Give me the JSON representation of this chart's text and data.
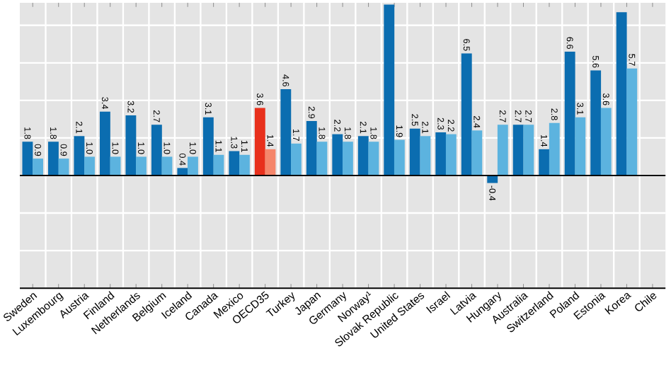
{
  "chart_data": {
    "type": "bar",
    "categories": [
      "Sweden",
      "Luxembourg",
      "Austria",
      "Finland",
      "Netherlands",
      "Belgium",
      "Iceland",
      "Canada",
      "Mexico",
      "OECD35",
      "Turkey",
      "Japan",
      "Germany",
      "Norway¹",
      "Slovak Republic",
      "United States",
      "Israel",
      "Latvia",
      "Hungary",
      "Australia",
      "Switzerland",
      "Poland",
      "Estonia",
      "Korea",
      "Chile"
    ],
    "series": [
      {
        "colors": [
          "#0b6db0",
          "#0b6db0",
          "#0b6db0",
          "#0b6db0",
          "#0b6db0",
          "#0b6db0",
          "#0b6db0",
          "#0b6db0",
          "#0b6db0",
          "#e8301c",
          "#0b6db0",
          "#0b6db0",
          "#0b6db0",
          "#0b6db0",
          "#0b6db0",
          "#0b6db0",
          "#0b6db0",
          "#0b6db0",
          "#0b6db0",
          "#0b6db0",
          "#0b6db0",
          "#0b6db0",
          "#0b6db0",
          "#0b6db0",
          "#0b6db0"
        ],
        "values": [
          1.8,
          1.8,
          2.1,
          3.4,
          3.2,
          2.7,
          0.4,
          3.1,
          1.3,
          3.6,
          4.6,
          2.9,
          2.2,
          2.1,
          9.1,
          2.5,
          2.3,
          6.5,
          -0.4,
          2.7,
          1.4,
          6.6,
          5.6,
          8.7,
          null
        ],
        "value_labels": [
          "1.8",
          "1.8",
          "2.1",
          "3.4",
          "3.2",
          "2.7",
          "0.4",
          "3.1",
          "1.3",
          "3.6",
          "4.6",
          "2.9",
          "2.2",
          "2.1",
          null,
          "2.5",
          "2.3",
          "6.5",
          "-0.4",
          "2.7",
          "1.4",
          "6.6",
          "5.6",
          null,
          null
        ]
      },
      {
        "colors": [
          "#5cb3df",
          "#5cb3df",
          "#5cb3df",
          "#5cb3df",
          "#5cb3df",
          "#5cb3df",
          "#5cb3df",
          "#5cb3df",
          "#5cb3df",
          "#f5866b",
          "#5cb3df",
          "#5cb3df",
          "#5cb3df",
          "#5cb3df",
          "#5cb3df",
          "#5cb3df",
          "#5cb3df",
          "#5cb3df",
          "#5cb3df",
          "#5cb3df",
          "#5cb3df",
          "#5cb3df",
          "#5cb3df",
          "#5cb3df",
          "#5cb3df"
        ],
        "values": [
          0.9,
          0.9,
          1.0,
          1.0,
          1.0,
          1.0,
          1.0,
          1.1,
          1.1,
          1.4,
          1.7,
          1.8,
          1.8,
          1.8,
          1.9,
          2.1,
          2.2,
          2.4,
          2.7,
          2.7,
          2.8,
          3.1,
          3.6,
          5.7,
          null
        ],
        "value_labels": [
          "0.9",
          "0.9",
          "1.0",
          "1.0",
          "1.0",
          "1.0",
          "1.0",
          "1.1",
          "1.1",
          "1.4",
          "1.7",
          "1.8",
          "1.8",
          "1.8",
          "1.9",
          "2.1",
          "2.2",
          "2.4",
          "2.7",
          "2.7",
          "2.8",
          "3.1",
          "3.6",
          "5.7",
          null
        ]
      }
    ],
    "ylim": [
      -6,
      9.2
    ],
    "yticks": [
      {
        "value": -6,
        "label": null
      },
      {
        "value": -4,
        "label": null
      },
      {
        "value": -2,
        "label": null
      },
      {
        "value": 0,
        "label": null
      },
      {
        "value": 2,
        "label": null
      },
      {
        "value": 4,
        "label": null
      },
      {
        "value": 6,
        "label": null
      },
      {
        "value": 8,
        "label": null
      }
    ],
    "tick_labels": "x",
    "grid": true
  }
}
